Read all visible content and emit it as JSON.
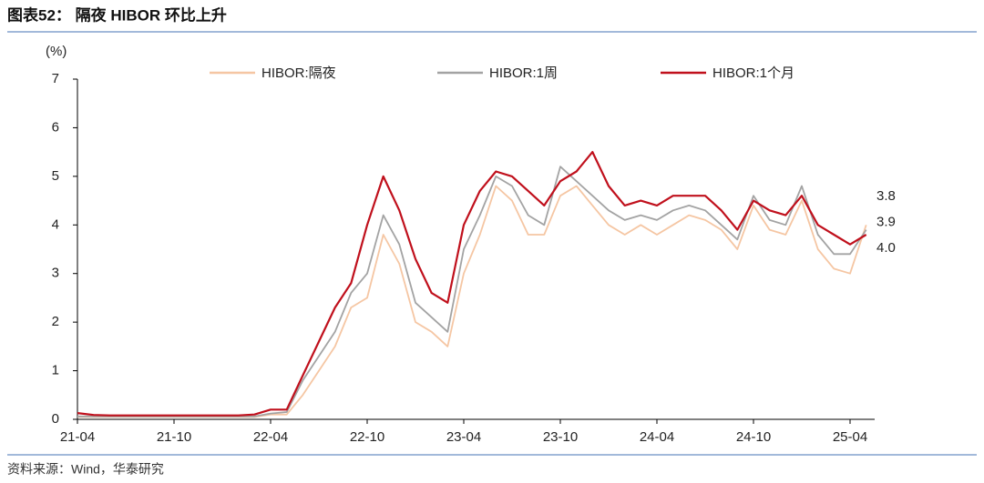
{
  "chart_data": {
    "type": "line",
    "title": "图表52： 隔夜 HIBOR 环比上升",
    "y_label": "(%)",
    "source": "资料来源：Wind，华泰研究",
    "x": [
      "21-04",
      "21-05",
      "21-06",
      "21-07",
      "21-08",
      "21-09",
      "21-10",
      "21-11",
      "21-12",
      "22-01",
      "22-02",
      "22-03",
      "22-04",
      "22-05",
      "22-06",
      "22-07",
      "22-08",
      "22-09",
      "22-10",
      "22-11",
      "22-12",
      "23-01",
      "23-02",
      "23-03",
      "23-04",
      "23-05",
      "23-06",
      "23-07",
      "23-08",
      "23-09",
      "23-10",
      "23-11",
      "23-12",
      "24-01",
      "24-02",
      "24-03",
      "24-04",
      "24-05",
      "24-06",
      "24-07",
      "24-08",
      "24-09",
      "24-10",
      "24-11",
      "24-12",
      "25-01",
      "25-02",
      "25-03",
      "25-04",
      "25-05"
    ],
    "xticks": [
      "21-04",
      "21-10",
      "22-04",
      "22-10",
      "23-04",
      "23-10",
      "24-04",
      "24-10",
      "25-04"
    ],
    "ylim": [
      0,
      7
    ],
    "yticks": [
      0,
      1,
      2,
      3,
      4,
      5,
      6,
      7
    ],
    "series": [
      {
        "name": "HIBOR:隔夜",
        "color": "#f5c6a3",
        "end_label": "4.0",
        "values": [
          0.05,
          0.05,
          0.05,
          0.05,
          0.05,
          0.05,
          0.05,
          0.05,
          0.05,
          0.05,
          0.05,
          0.05,
          0.1,
          0.1,
          0.5,
          1.0,
          1.5,
          2.3,
          2.5,
          3.8,
          3.2,
          2.0,
          1.8,
          1.5,
          3.0,
          3.8,
          4.8,
          4.5,
          3.8,
          3.8,
          4.6,
          4.8,
          4.4,
          4.0,
          3.8,
          4.0,
          3.8,
          4.0,
          4.2,
          4.1,
          3.9,
          3.5,
          4.4,
          3.9,
          3.8,
          4.5,
          3.5,
          3.1,
          3.0,
          4.0
        ]
      },
      {
        "name": "HIBOR:1周",
        "color": "#a3a3a3",
        "end_label": "3.9",
        "values": [
          0.06,
          0.06,
          0.06,
          0.06,
          0.06,
          0.06,
          0.06,
          0.06,
          0.06,
          0.06,
          0.06,
          0.06,
          0.12,
          0.15,
          0.8,
          1.3,
          1.8,
          2.6,
          3.0,
          4.2,
          3.6,
          2.4,
          2.1,
          1.8,
          3.5,
          4.2,
          5.0,
          4.8,
          4.2,
          4.0,
          5.2,
          4.9,
          4.6,
          4.3,
          4.1,
          4.2,
          4.1,
          4.3,
          4.4,
          4.3,
          4.0,
          3.7,
          4.6,
          4.1,
          4.0,
          4.8,
          3.8,
          3.4,
          3.4,
          3.9
        ]
      },
      {
        "name": "HIBOR:1个月",
        "color": "#c0101c",
        "end_label": "3.8",
        "values": [
          0.13,
          0.09,
          0.08,
          0.08,
          0.08,
          0.08,
          0.08,
          0.08,
          0.08,
          0.08,
          0.08,
          0.1,
          0.2,
          0.2,
          0.9,
          1.6,
          2.3,
          2.8,
          4.0,
          5.0,
          4.3,
          3.3,
          2.6,
          2.4,
          4.0,
          4.7,
          5.1,
          5.0,
          4.7,
          4.4,
          4.9,
          5.1,
          5.5,
          4.8,
          4.4,
          4.5,
          4.4,
          4.6,
          4.6,
          4.6,
          4.3,
          3.9,
          4.5,
          4.3,
          4.2,
          4.6,
          4.0,
          3.8,
          3.6,
          3.8
        ]
      }
    ],
    "legend": "top"
  }
}
